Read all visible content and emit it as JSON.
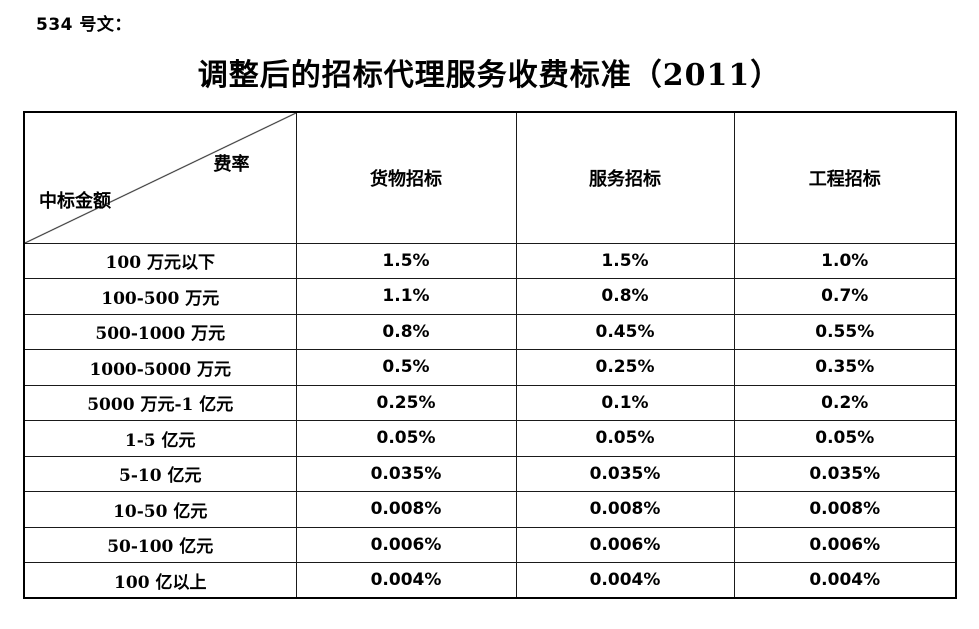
{
  "page": {
    "doc_number": "534 号文：",
    "title": "调整后的招标代理服务收费标准（2011）"
  },
  "table": {
    "corner": {
      "top_right": "费率",
      "bottom_left": "中标金额"
    },
    "columns": [
      "货物招标",
      "服务招标",
      "工程招标"
    ],
    "rows": [
      {
        "amount": "100 万元以下",
        "goods": "1.5%",
        "service": "1.5%",
        "engineering": "1.0%"
      },
      {
        "amount": "100-500 万元",
        "goods": "1.1%",
        "service": "0.8%",
        "engineering": "0.7%"
      },
      {
        "amount": "500-1000 万元",
        "goods": "0.8%",
        "service": "0.45%",
        "engineering": "0.55%"
      },
      {
        "amount": "1000-5000 万元",
        "goods": "0.5%",
        "service": "0.25%",
        "engineering": "0.35%"
      },
      {
        "amount": "5000 万元-1 亿元",
        "goods": "0.25%",
        "service": "0.1%",
        "engineering": "0.2%"
      },
      {
        "amount": "1-5 亿元",
        "goods": "0.05%",
        "service": "0.05%",
        "engineering": "0.05%"
      },
      {
        "amount": "5-10 亿元",
        "goods": "0.035%",
        "service": "0.035%",
        "engineering": "0.035%"
      },
      {
        "amount": "10-50 亿元",
        "goods": "0.008%",
        "service": "0.008%",
        "engineering": "0.008%"
      },
      {
        "amount": "50-100 亿元",
        "goods": "0.006%",
        "service": "0.006%",
        "engineering": "0.006%"
      },
      {
        "amount": "100 亿以上",
        "goods": "0.004%",
        "service": "0.004%",
        "engineering": "0.004%"
      }
    ]
  }
}
